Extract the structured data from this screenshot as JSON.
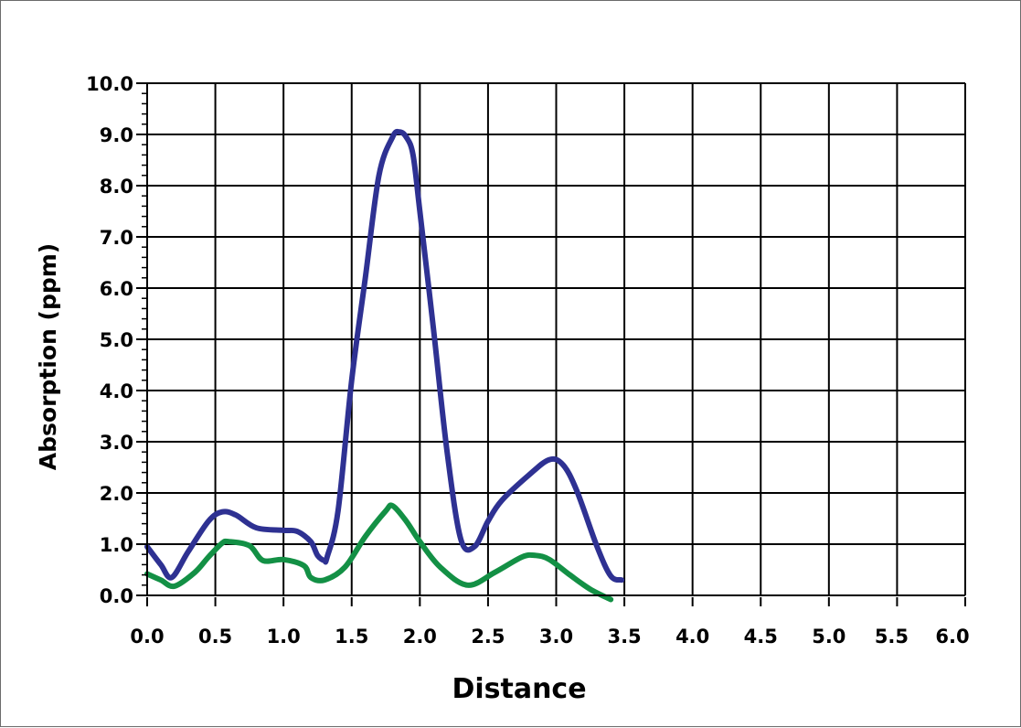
{
  "chart_data": {
    "type": "line",
    "title": "",
    "xlabel": "Distance",
    "ylabel": "Absorption (ppm)",
    "xlim": [
      0,
      6
    ],
    "ylim": [
      0,
      10
    ],
    "grid": true,
    "x_ticks": [
      0.0,
      0.5,
      1.0,
      1.5,
      2.0,
      2.5,
      3.0,
      3.5,
      4.0,
      4.5,
      5.0,
      5.5,
      6.0
    ],
    "x_tick_labels": [
      "0.0",
      "0.5",
      "1.0",
      "1.5",
      "2.0",
      "2.5",
      "3.0",
      "3.5",
      "4.0",
      "4.5",
      "5.0",
      "5.5",
      "6.0"
    ],
    "y_ticks": [
      0,
      1,
      2,
      3,
      4,
      5,
      6,
      7,
      8,
      9,
      10
    ],
    "y_tick_labels": [
      "0.0",
      "1.0",
      "2.0",
      "3.0",
      "4.0",
      "5.0",
      "6.0",
      "7.0",
      "8.0",
      "9.0",
      "10.0"
    ],
    "series": [
      {
        "color": "#2e3192",
        "x": [
          0.0,
          0.1,
          0.18,
          0.3,
          0.45,
          0.55,
          0.65,
          0.8,
          1.0,
          1.1,
          1.2,
          1.25,
          1.3,
          1.32,
          1.4,
          1.5,
          1.6,
          1.7,
          1.8,
          1.85,
          1.9,
          1.95,
          2.0,
          2.1,
          2.2,
          2.3,
          2.4,
          2.5,
          2.6,
          2.8,
          2.95,
          3.05,
          3.15,
          3.3,
          3.4,
          3.48
        ],
        "y": [
          0.95,
          0.6,
          0.35,
          0.85,
          1.45,
          1.63,
          1.57,
          1.32,
          1.27,
          1.25,
          1.05,
          0.78,
          0.68,
          0.75,
          1.65,
          4.2,
          6.2,
          8.2,
          8.95,
          9.05,
          8.95,
          8.6,
          7.5,
          5.2,
          2.8,
          1.1,
          0.95,
          1.45,
          1.85,
          2.35,
          2.65,
          2.55,
          2.05,
          0.95,
          0.38,
          0.3
        ]
      },
      {
        "color": "#139045",
        "x": [
          0.0,
          0.1,
          0.2,
          0.35,
          0.45,
          0.55,
          0.6,
          0.75,
          0.85,
          1.0,
          1.15,
          1.2,
          1.3,
          1.45,
          1.6,
          1.75,
          1.8,
          1.9,
          2.0,
          2.15,
          2.35,
          2.55,
          2.75,
          2.85,
          2.95,
          3.1,
          3.25,
          3.4
        ],
        "y": [
          0.42,
          0.3,
          0.18,
          0.45,
          0.75,
          1.02,
          1.05,
          0.97,
          0.68,
          0.7,
          0.58,
          0.35,
          0.3,
          0.55,
          1.15,
          1.65,
          1.75,
          1.45,
          1.05,
          0.55,
          0.2,
          0.45,
          0.75,
          0.78,
          0.7,
          0.4,
          0.12,
          -0.08
        ]
      }
    ]
  }
}
